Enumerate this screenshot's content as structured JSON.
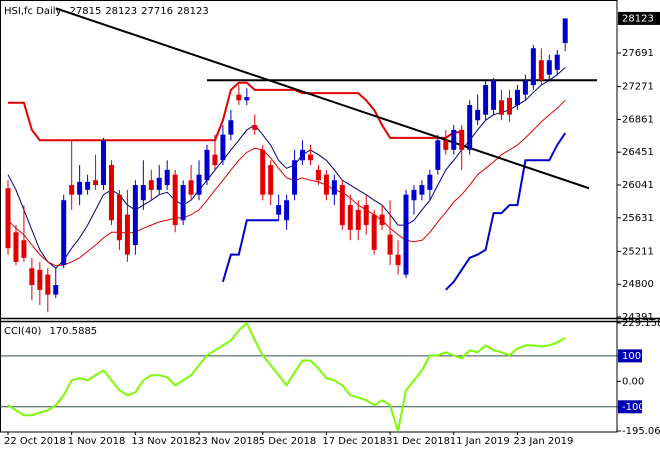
{
  "chart_data": [
    {
      "type": "candlestick",
      "title": "HSI,fc Daily",
      "categories": [
        "22 Oct 2018",
        null,
        null,
        null,
        null,
        null,
        null,
        null,
        "1 Nov 2018",
        null,
        null,
        null,
        null,
        null,
        null,
        null,
        "13 Nov 2018",
        null,
        null,
        null,
        null,
        null,
        null,
        null,
        "23 Nov 2018",
        null,
        null,
        null,
        null,
        null,
        null,
        null,
        "5 Dec 2018",
        null,
        null,
        null,
        null,
        null,
        null,
        null,
        "17 Dec 2018",
        null,
        null,
        null,
        null,
        null,
        null,
        null,
        "31 Dec 2018",
        null,
        null,
        null,
        null,
        null,
        null,
        null,
        "11 Jan 2019",
        null,
        null,
        null,
        null,
        null,
        null,
        null,
        "23 Jan 2019",
        null,
        null,
        null,
        null,
        null,
        null
      ],
      "open": [
        26000,
        25450,
        25350,
        25000,
        24980,
        24920,
        24670,
        25040,
        26040,
        25920,
        25980,
        26100,
        26040,
        26290,
        25920,
        25670,
        25290,
        25850,
        26100,
        25980,
        26040,
        26170,
        25600,
        26100,
        25920,
        26100,
        26420,
        26350,
        26670,
        27170,
        27100,
        26790,
        26480,
        26290,
        25670,
        25600,
        25920,
        26350,
        26420,
        26230,
        26170,
        25920,
        26040,
        25790,
        25730,
        25790,
        25670,
        25670,
        25420,
        25170,
        24920,
        25850,
        25920,
        25980,
        26230,
        26600,
        26480,
        26730,
        26480,
        26850,
        26920,
        26980,
        27100,
        27130,
        27040,
        27170,
        27290,
        27600,
        27420,
        27480,
        27815
      ],
      "high": [
        26100,
        25540,
        25790,
        25130,
        25080,
        25000,
        25000,
        25920,
        26600,
        26290,
        26170,
        26420,
        26630,
        26350,
        25980,
        25980,
        26100,
        26350,
        26230,
        26290,
        26350,
        26230,
        26100,
        26290,
        26350,
        26540,
        26670,
        26790,
        26980,
        27290,
        27250,
        26920,
        26540,
        26350,
        25920,
        25920,
        26480,
        26600,
        26540,
        26290,
        26230,
        26170,
        26100,
        25920,
        25850,
        25920,
        25730,
        25790,
        25850,
        25350,
        25980,
        26040,
        26100,
        26230,
        26670,
        26730,
        26790,
        26790,
        27100,
        27170,
        27350,
        27380,
        27230,
        27230,
        27290,
        27420,
        27790,
        27750,
        27670,
        27730,
        28123
      ],
      "low": [
        25170,
        25040,
        25080,
        24600,
        24540,
        24450,
        24630,
        25000,
        25730,
        25790,
        25920,
        25980,
        25980,
        25540,
        25230,
        25080,
        25170,
        25730,
        25850,
        25920,
        25980,
        25450,
        25540,
        25850,
        25850,
        26040,
        26230,
        26290,
        26600,
        27040,
        27040,
        26670,
        25850,
        25790,
        25600,
        25480,
        25850,
        26290,
        26290,
        26040,
        25850,
        25790,
        25480,
        25350,
        25350,
        25420,
        25170,
        25480,
        25040,
        24920,
        24880,
        25670,
        25850,
        25850,
        26170,
        26420,
        26420,
        26230,
        26420,
        26790,
        26850,
        26920,
        26850,
        26830,
        26980,
        27100,
        27230,
        27290,
        27330,
        27420,
        27716
      ],
      "close": [
        25250,
        25080,
        25130,
        24790,
        24730,
        24670,
        24790,
        25850,
        25920,
        26080,
        26080,
        26040,
        26600,
        25600,
        25350,
        25170,
        26040,
        26040,
        25980,
        26130,
        26230,
        25540,
        26040,
        25920,
        26170,
        26480,
        26290,
        26670,
        26850,
        27100,
        27140,
        26730,
        25920,
        25920,
        25790,
        25850,
        26350,
        26480,
        26350,
        26100,
        25920,
        26100,
        25540,
        25480,
        25480,
        25540,
        25230,
        25540,
        25170,
        25040,
        25920,
        25980,
        26040,
        26170,
        26600,
        26480,
        26730,
        26480,
        27040,
        26980,
        27290,
        27350,
        26920,
        26920,
        27230,
        27350,
        27750,
        27350,
        27600,
        27670,
        28123
      ],
      "up_color": "#0000cc",
      "down_color": "#e00000",
      "overlays": [
        {
          "color": "#000080",
          "line_width": 1,
          "values": [
            26170,
            25980,
            25730,
            25480,
            25230,
            25080,
            25000,
            25100,
            25250,
            25380,
            25540,
            25730,
            25920,
            25980,
            25920,
            25790,
            25730,
            25790,
            25850,
            25920,
            25950,
            25850,
            25790,
            25850,
            25980,
            26100,
            26230,
            26350,
            26480,
            26600,
            26730,
            26790,
            26670,
            26540,
            26350,
            26250,
            26290,
            26420,
            26480,
            26420,
            26350,
            26230,
            26100,
            26040,
            25980,
            25920,
            25850,
            25790,
            25670,
            25540,
            25540,
            25600,
            25730,
            25850,
            26040,
            26230,
            26350,
            26480,
            26600,
            26730,
            26850,
            26920,
            26950,
            26980,
            27040,
            27100,
            27200,
            27290,
            27350,
            27420,
            27510
          ]
        },
        {
          "color": "#dd0000",
          "line_width": 1,
          "values": [
            25600,
            25500,
            25420,
            25290,
            25170,
            25080,
            25030,
            25040,
            25080,
            25130,
            25210,
            25290,
            25380,
            25450,
            25450,
            25440,
            25450,
            25500,
            25540,
            25580,
            25600,
            25630,
            25630,
            25670,
            25730,
            25850,
            25980,
            26100,
            26230,
            26350,
            26450,
            26500,
            26480,
            26380,
            26250,
            26130,
            26100,
            26130,
            26100,
            26080,
            26040,
            25980,
            25950,
            25880,
            25790,
            25730,
            25670,
            25600,
            25500,
            25420,
            25350,
            25330,
            25350,
            25450,
            25580,
            25700,
            25830,
            25920,
            26040,
            26170,
            26250,
            26330,
            26420,
            26480,
            26540,
            26630,
            26730,
            26830,
            26920,
            27000,
            27100
          ]
        },
        {
          "color": "#e00000",
          "line_width": 2,
          "values": [
            27070,
            27070,
            27070,
            26730,
            26600,
            26600,
            26600,
            26600,
            26600,
            26600,
            26600,
            26600,
            26600,
            26600,
            26600,
            26600,
            26600,
            26600,
            26600,
            26600,
            26600,
            26600,
            26600,
            26600,
            26600,
            26600,
            26600,
            26850,
            27230,
            27320,
            27320,
            27230,
            27230,
            27230,
            27230,
            27230,
            27230,
            27190,
            27190,
            27190,
            27190,
            27190,
            27190,
            27190,
            27190,
            27100,
            26980,
            26790,
            26630,
            26630,
            26630,
            26630,
            26630,
            26630,
            26630,
            26630,
            26700,
            26700,
            null,
            null,
            null,
            null,
            null,
            null,
            null,
            null,
            null,
            null,
            null,
            null,
            null
          ]
        },
        {
          "color": "#0000cc",
          "line_width": 2,
          "values": [
            null,
            null,
            null,
            null,
            null,
            null,
            null,
            null,
            null,
            null,
            null,
            null,
            null,
            null,
            null,
            null,
            null,
            null,
            null,
            null,
            null,
            null,
            null,
            null,
            null,
            null,
            null,
            24830,
            25170,
            25170,
            25600,
            25600,
            25600,
            25600,
            25600,
            null,
            null,
            null,
            null,
            null,
            null,
            null,
            null,
            null,
            null,
            null,
            null,
            null,
            null,
            null,
            null,
            null,
            null,
            null,
            null,
            24730,
            24830,
            24980,
            25130,
            25170,
            25230,
            25690,
            25690,
            25790,
            25790,
            26350,
            26350,
            26350,
            26350,
            26540,
            26690
          ]
        }
      ],
      "trendlines": [
        {
          "color": "#000000",
          "x": [
            6,
            73
          ],
          "values": [
            28250,
            26000
          ]
        },
        {
          "color": "#000000",
          "x": [
            25,
            74
          ],
          "values": [
            27350,
            27350
          ]
        }
      ],
      "current_value": 28123,
      "ylim": [
        24353,
        28316
      ],
      "yticks": [
        24391,
        24800,
        25211,
        25631,
        26041,
        26451,
        26861,
        27271,
        27691
      ]
    },
    {
      "type": "line",
      "title": "CCI(40)",
      "color": "#7cfc00",
      "values": [
        -94,
        -114,
        -133,
        -133,
        -122,
        -114,
        -94,
        -55,
        4,
        12,
        4,
        24,
        43,
        4,
        -35,
        -55,
        -43,
        4,
        24,
        24,
        16,
        -16,
        4,
        24,
        63,
        102,
        122,
        141,
        161,
        200,
        229.1588,
        161,
        102,
        63,
        24,
        -16,
        35,
        82,
        82,
        51,
        12,
        4,
        -16,
        -55,
        -63,
        -74,
        -94,
        -74,
        -94,
        -195.0611,
        -35,
        4,
        43,
        102,
        102,
        114,
        102,
        90,
        122,
        114,
        141,
        122,
        114,
        102,
        129,
        141,
        141,
        137,
        141,
        153,
        170.5885
      ],
      "levels": [
        100,
        -100
      ],
      "level_color": "#2f4f4f",
      "ylim": [
        -195.0611,
        229.1588
      ],
      "yticks": [
        -195.0611,
        -100,
        {
          "value": 0,
          "label": "0.00"
        },
        100,
        229.1588
      ]
    }
  ]
}
